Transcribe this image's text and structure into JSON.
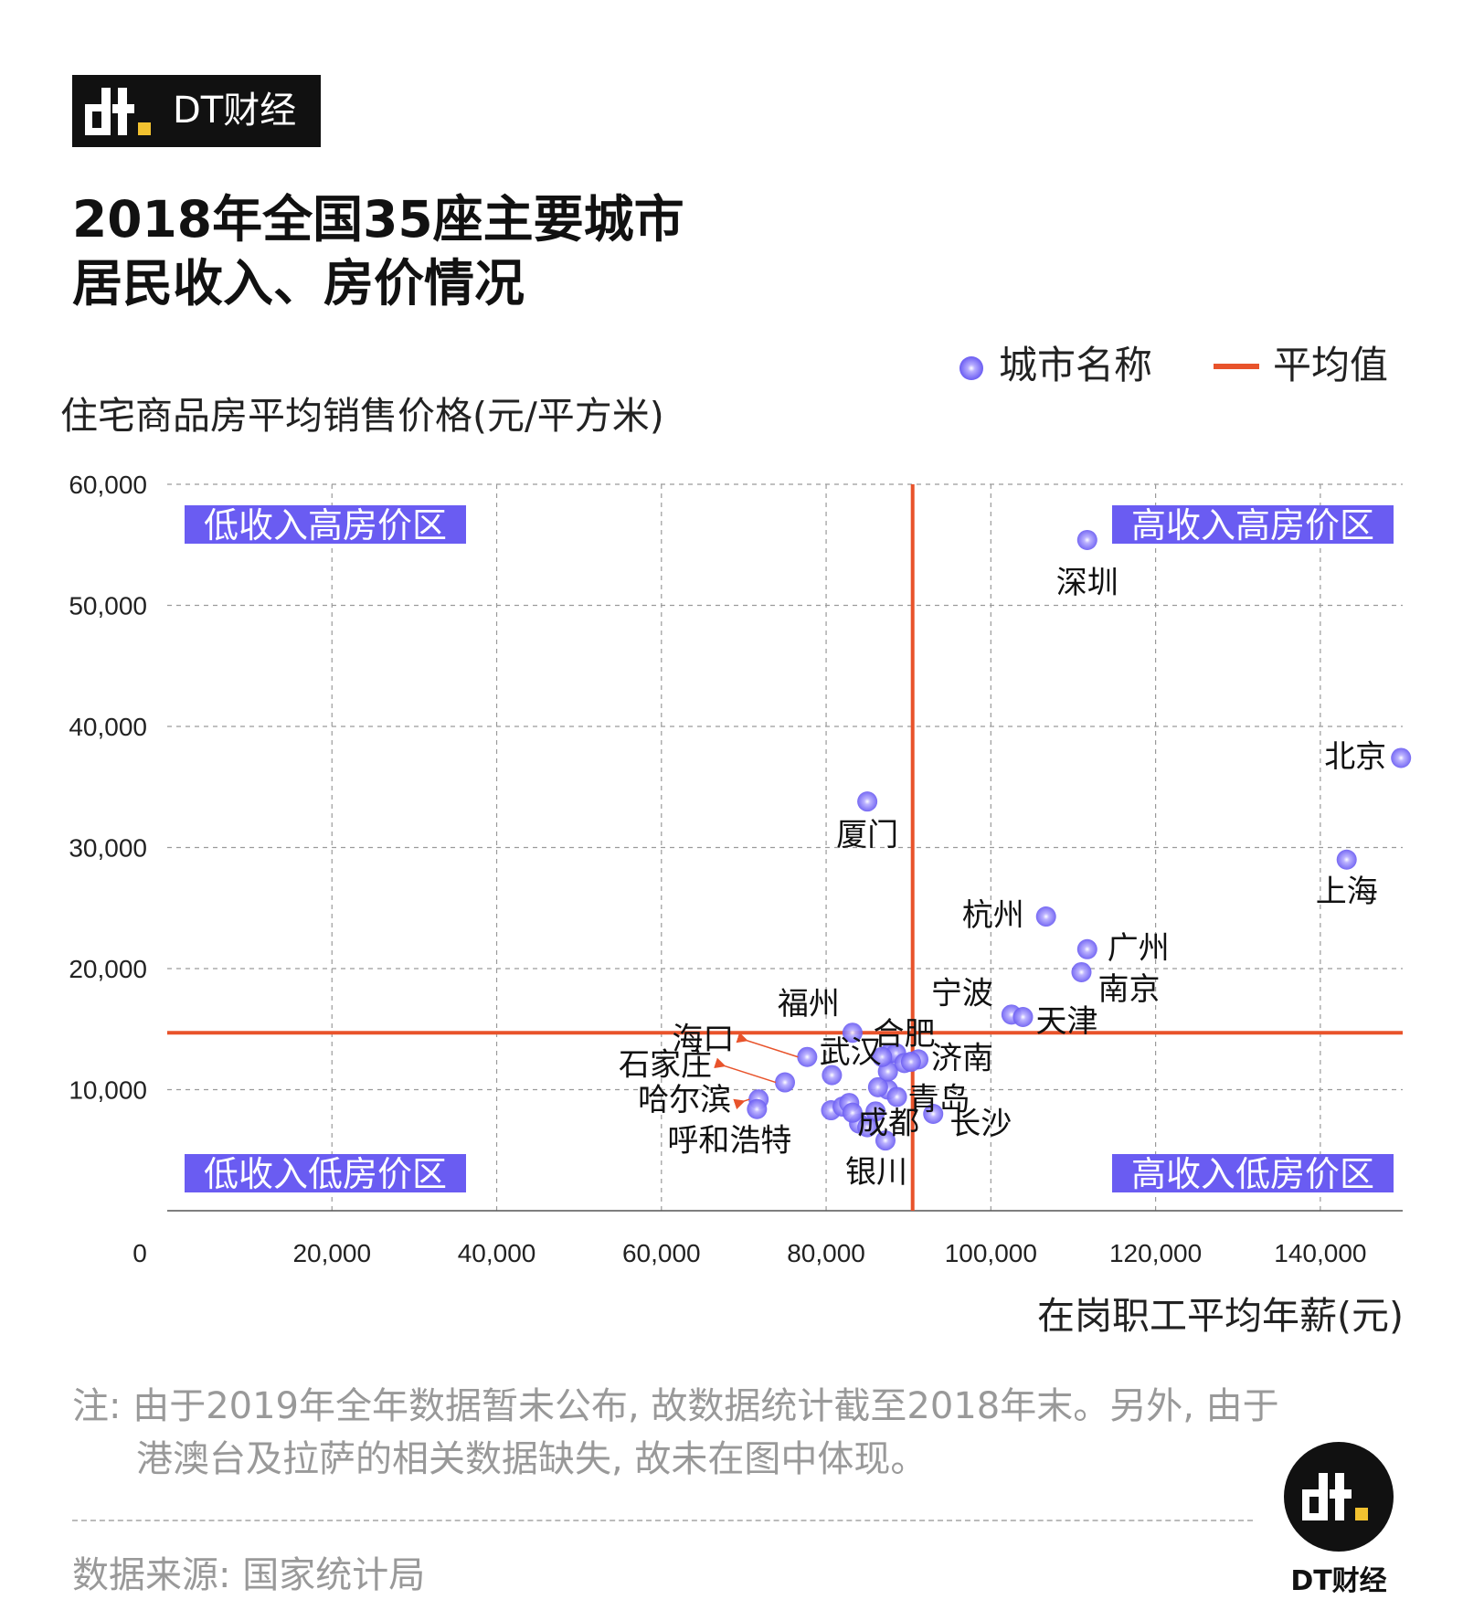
{
  "brand": "DT财经",
  "title_lines": [
    "2018年全国35座主要城市",
    "居民收入、房价情况"
  ],
  "legend": {
    "city": "城市名称",
    "average": "平均值"
  },
  "note": {
    "line1": "注: 由于2019年全年数据暂未公布, 故数据统计截至2018年末。另外, 由于",
    "line2": "港澳台及拉萨的相关数据缺失, 故未在图中体现。"
  },
  "source": "数据来源: 国家统计局",
  "colors": {
    "point": "#6a5cf2",
    "average_line": "#e8532b",
    "quadrant_bg": "#6a5cf2"
  },
  "chart_data": {
    "type": "scatter",
    "xlabel": "在岗职工平均年薪(元)",
    "ylabel": "住宅商品房平均销售价格(元/平方米)",
    "xlim": [
      0,
      150000
    ],
    "ylim": [
      0,
      60000
    ],
    "x_ticks": [
      0,
      20000,
      40000,
      60000,
      80000,
      100000,
      120000,
      140000
    ],
    "x_tick_labels": [
      "0",
      "20,000",
      "40,000",
      "60,000",
      "80,000",
      "100,000",
      "120,000",
      "140,000"
    ],
    "y_ticks": [
      10000,
      20000,
      30000,
      40000,
      50000,
      60000
    ],
    "y_tick_labels": [
      "10,000",
      "20,000",
      "30,000",
      "40,000",
      "50,000",
      "60,000"
    ],
    "grid": true,
    "average_lines": {
      "x": 90500,
      "y": 14700
    },
    "quadrants": {
      "top_left": "低收入高房价区",
      "top_right": "高收入高房价区",
      "bottom_left": "低收入低房价区",
      "bottom_right": "高收入低房价区"
    },
    "points": [
      {
        "label": "深圳",
        "x": 111700,
        "y": 55400
      },
      {
        "label": "北京",
        "x": 149800,
        "y": 37400
      },
      {
        "label": "上海",
        "x": 143200,
        "y": 29000
      },
      {
        "label": "厦门",
        "x": 85000,
        "y": 33800
      },
      {
        "label": "杭州",
        "x": 106700,
        "y": 24300
      },
      {
        "label": "广州",
        "x": 111700,
        "y": 21600
      },
      {
        "label": "南京",
        "x": 111000,
        "y": 19700
      },
      {
        "label": "宁波",
        "x": 102500,
        "y": 16200
      },
      {
        "label": "天津",
        "x": 103900,
        "y": 16000
      },
      {
        "label": "福州",
        "x": 83200,
        "y": 14700
      },
      {
        "label": "合肥",
        "x": 87700,
        "y": 13000
      },
      {
        "label": "海口",
        "x": 77700,
        "y": 12700
      },
      {
        "label": "武汉",
        "x": 88500,
        "y": 13000
      },
      {
        "label": "济南",
        "x": 91200,
        "y": 12500
      },
      {
        "label": "石家庄",
        "x": 75000,
        "y": 10600
      },
      {
        "label": "青岛",
        "x": 87500,
        "y": 10000
      },
      {
        "label": "哈尔滨",
        "x": 71800,
        "y": 9200
      },
      {
        "label": "成都",
        "x": 86000,
        "y": 8200
      },
      {
        "label": "长沙",
        "x": 93000,
        "y": 8000
      },
      {
        "label": "呼和浩特",
        "x": 71600,
        "y": 8400
      },
      {
        "label": "银川",
        "x": 87200,
        "y": 5800
      },
      {
        "label": "",
        "x": 80700,
        "y": 11200
      },
      {
        "label": "",
        "x": 80600,
        "y": 8300
      },
      {
        "label": "",
        "x": 82000,
        "y": 8600
      },
      {
        "label": "",
        "x": 82800,
        "y": 8900
      },
      {
        "label": "",
        "x": 84000,
        "y": 7200
      },
      {
        "label": "",
        "x": 85000,
        "y": 6900
      },
      {
        "label": "",
        "x": 86300,
        "y": 10200
      },
      {
        "label": "",
        "x": 87500,
        "y": 11500
      },
      {
        "label": "",
        "x": 88600,
        "y": 9400
      },
      {
        "label": "",
        "x": 89500,
        "y": 12200
      },
      {
        "label": "",
        "x": 90300,
        "y": 12300
      },
      {
        "label": "",
        "x": 83200,
        "y": 8100
      },
      {
        "label": "",
        "x": 86800,
        "y": 12700
      }
    ]
  }
}
